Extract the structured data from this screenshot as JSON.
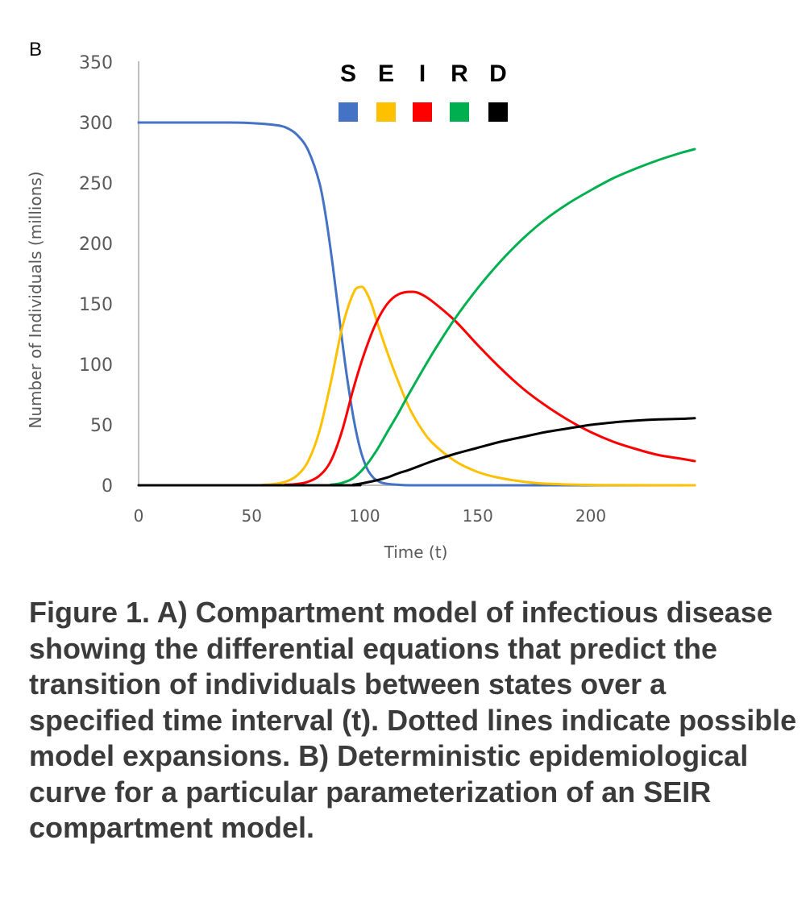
{
  "panel_label": "B",
  "caption": "Figure 1. A) Compartment model of infectious disease showing the differential equations that predict the transition of individuals between states over a specified time interval (t). Dotted lines indicate possible model expansions. B) Deterministic epidemiological curve for a particular parameterization of an SEIR compartment model.",
  "chart_data": {
    "type": "line",
    "title": "",
    "xlabel": "Time (t)",
    "ylabel": "Number of Individuals (millions)",
    "xlim": [
      0,
      246
    ],
    "ylim": [
      0,
      350
    ],
    "xticks": [
      0,
      50,
      100,
      150,
      200
    ],
    "yticks": [
      0,
      50,
      100,
      150,
      200,
      250,
      300,
      350
    ],
    "grid": false,
    "legend_position": "top-center",
    "series": [
      {
        "name": "S",
        "color": "#4472C4",
        "x": [
          0,
          40,
          50,
          60,
          65,
          70,
          75,
          80,
          83,
          86,
          89,
          92,
          95,
          98,
          101,
          104,
          107,
          110,
          115,
          120,
          130,
          150,
          200,
          246
        ],
        "y": [
          300,
          300,
          299.5,
          298,
          296,
          290,
          277,
          250,
          220,
          180,
          135,
          92,
          56,
          30,
          14,
          6,
          2.5,
          1.2,
          0.4,
          0,
          0,
          0,
          0,
          0
        ]
      },
      {
        "name": "E",
        "color": "#FFC000",
        "x": [
          0,
          50,
          55,
          60,
          65,
          70,
          75,
          80,
          85,
          90,
          95,
          98,
          100,
          103,
          106,
          110,
          115,
          120,
          125,
          130,
          140,
          150,
          160,
          175,
          190,
          206,
          246
        ],
        "y": [
          0,
          0,
          0.3,
          1,
          3,
          8,
          20,
          45,
          85,
          130,
          159,
          164,
          162,
          150,
          132,
          110,
          85,
          63,
          47,
          35,
          20,
          11,
          6,
          2,
          0.7,
          0.2,
          0
        ]
      },
      {
        "name": "I",
        "color": "#FF0000",
        "x": [
          0,
          60,
          65,
          70,
          75,
          80,
          85,
          90,
          95,
          100,
          105,
          110,
          115,
          121,
          125,
          130,
          140,
          150,
          160,
          170,
          180,
          190,
          200,
          210,
          220,
          230,
          240,
          246
        ],
        "y": [
          0,
          0,
          0.5,
          1,
          3,
          8,
          20,
          45,
          80,
          110,
          134,
          150,
          158,
          160,
          158,
          152,
          136,
          116,
          97,
          80,
          66,
          54,
          44,
          36,
          30,
          25,
          22,
          20
        ]
      },
      {
        "name": "R",
        "color": "#00B050",
        "x": [
          0,
          80,
          85,
          90,
          95,
          100,
          105,
          110,
          115,
          120,
          130,
          140,
          150,
          160,
          170,
          180,
          190,
          200,
          210,
          220,
          230,
          240,
          246
        ],
        "y": [
          0,
          0,
          0.5,
          2,
          6,
          15,
          28,
          44,
          60,
          77,
          109,
          138,
          163,
          185,
          204,
          220,
          233,
          244,
          254,
          262,
          269,
          275,
          278
        ]
      },
      {
        "name": "D",
        "color": "#000000",
        "x": [
          0,
          90,
          95,
          100,
          105,
          110,
          115,
          120,
          130,
          140,
          150,
          160,
          170,
          180,
          190,
          200,
          210,
          220,
          230,
          240,
          246
        ],
        "y": [
          0,
          0,
          0.5,
          2,
          4,
          6.5,
          10,
          13,
          20,
          26,
          31,
          36,
          40,
          44,
          47,
          50,
          52,
          53.5,
          54.5,
          55,
          55.5
        ]
      }
    ]
  }
}
